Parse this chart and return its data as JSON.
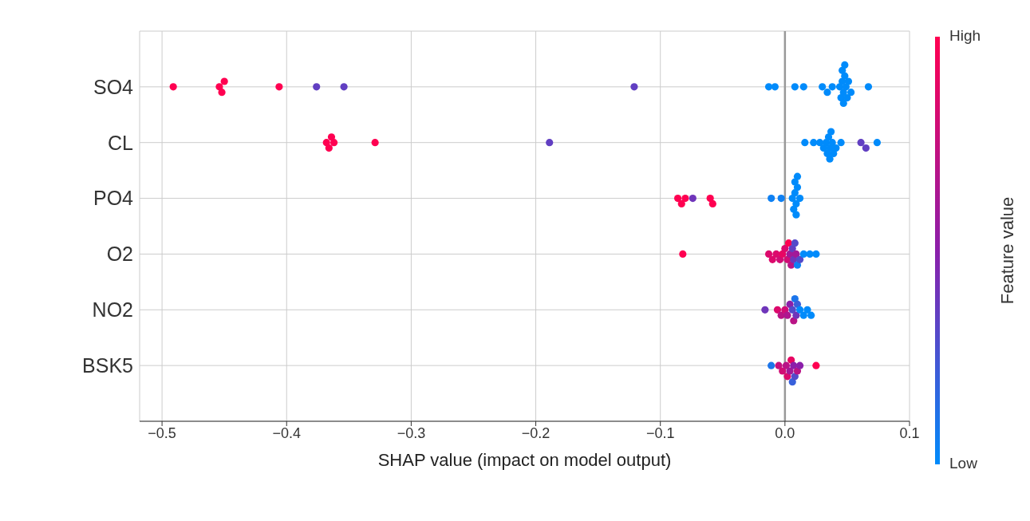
{
  "chart_data": {
    "type": "scatter",
    "orientation": "horizontal",
    "xlabel": "SHAP value (impact on model output)",
    "clabel": "Feature value",
    "categories": [
      "SO4",
      "CL",
      "PO4",
      "O2",
      "NO2",
      "BSK5"
    ],
    "xlim": [
      -0.518,
      0.1
    ],
    "xticks": [
      {
        "value": -0.5,
        "label": "−0.5"
      },
      {
        "value": -0.4,
        "label": "−0.4"
      },
      {
        "value": -0.3,
        "label": "−0.3"
      },
      {
        "value": -0.2,
        "label": "−0.2"
      },
      {
        "value": -0.1,
        "label": "−0.1"
      },
      {
        "value": 0,
        "label": "0.0"
      },
      {
        "value": 0.1,
        "label": "0.1"
      }
    ],
    "clim": [
      0,
      1
    ],
    "cticks": [
      {
        "value": 0,
        "label": "Low"
      },
      {
        "value": 1,
        "label": "High"
      }
    ],
    "grid": true,
    "marker": "circle",
    "ref_lines": [
      {
        "axis": "x",
        "value": 0,
        "color": "#999999"
      }
    ],
    "series": [
      {
        "x": [
          "SO4",
          "SO4",
          "SO4",
          "SO4",
          "SO4",
          "SO4",
          "SO4",
          "SO4",
          "SO4",
          "SO4",
          "SO4",
          "SO4",
          "SO4",
          "SO4",
          "SO4",
          "SO4",
          "SO4",
          "SO4",
          "SO4",
          "SO4",
          "SO4",
          "SO4",
          "SO4",
          "SO4",
          "SO4",
          "SO4",
          "SO4",
          "SO4",
          "CL",
          "CL",
          "CL",
          "CL",
          "CL",
          "CL",
          "CL",
          "CL",
          "CL",
          "CL",
          "CL",
          "CL",
          "CL",
          "CL",
          "CL",
          "CL",
          "CL",
          "CL",
          "CL",
          "CL",
          "CL",
          "CL",
          "CL",
          "PO4",
          "PO4",
          "PO4",
          "PO4",
          "PO4",
          "PO4",
          "PO4",
          "PO4",
          "PO4",
          "PO4",
          "PO4",
          "PO4",
          "PO4",
          "PO4",
          "PO4",
          "PO4",
          "PO4",
          "O2",
          "O2",
          "O2",
          "O2",
          "O2",
          "O2",
          "O2",
          "O2",
          "O2",
          "O2",
          "O2",
          "O2",
          "O2",
          "O2",
          "O2",
          "O2",
          "O2",
          "O2",
          "O2",
          "O2",
          "NO2",
          "NO2",
          "NO2",
          "NO2",
          "NO2",
          "NO2",
          "NO2",
          "NO2",
          "NO2",
          "NO2",
          "NO2",
          "NO2",
          "NO2",
          "NO2",
          "NO2",
          "BSK5",
          "BSK5",
          "BSK5",
          "BSK5",
          "BSK5",
          "BSK5",
          "BSK5",
          "BSK5",
          "BSK5",
          "BSK5",
          "BSK5",
          "BSK5",
          "BSK5"
        ],
        "values": [
          -0.491,
          -0.454,
          -0.452,
          -0.45,
          -0.406,
          -0.376,
          -0.354,
          -0.121,
          -0.013,
          -0.008,
          0.008,
          0.015,
          0.03,
          0.034,
          0.038,
          0.044,
          0.045,
          0.046,
          0.046,
          0.047,
          0.047,
          0.048,
          0.048,
          0.049,
          0.05,
          0.051,
          0.053,
          0.067,
          -0.368,
          -0.366,
          -0.364,
          -0.362,
          -0.329,
          -0.189,
          0.016,
          0.023,
          0.028,
          0.031,
          0.033,
          0.034,
          0.035,
          0.036,
          0.036,
          0.037,
          0.038,
          0.039,
          0.041,
          0.045,
          0.061,
          0.065,
          0.074,
          -0.086,
          -0.083,
          -0.08,
          -0.074,
          -0.06,
          -0.058,
          -0.011,
          -0.003,
          0.006,
          0.007,
          0.008,
          0.008,
          0.009,
          0.009,
          0.01,
          0.01,
          0.012,
          -0.082,
          -0.013,
          -0.01,
          -0.007,
          -0.004,
          -0.002,
          0,
          0.002,
          0.003,
          0.004,
          0.005,
          0.006,
          0.007,
          0.008,
          0.009,
          0.01,
          0.012,
          0.015,
          0.02,
          0.025,
          -0.016,
          -0.006,
          -0.003,
          0,
          0.002,
          0.004,
          0.006,
          0.007,
          0.008,
          0.009,
          0.01,
          0.012,
          0.015,
          0.018,
          0.021,
          -0.011,
          -0.005,
          -0.002,
          0.001,
          0.002,
          0.004,
          0.005,
          0.006,
          0.007,
          0.008,
          0.01,
          0.012,
          0.025
        ],
        "cvalues": [
          1,
          1,
          1,
          1,
          1,
          0.35,
          0.35,
          0.35,
          0,
          0,
          0,
          0,
          0,
          0,
          0,
          0,
          0,
          0,
          0,
          0,
          0,
          0,
          0,
          0,
          0,
          0,
          0,
          0,
          1,
          1,
          1,
          1,
          1,
          0.35,
          0,
          0,
          0,
          0,
          0,
          0,
          0,
          0,
          0,
          0,
          0,
          0,
          0,
          0,
          0.35,
          0.35,
          0,
          1,
          1,
          1,
          0.4,
          1,
          1,
          0.05,
          0.05,
          0,
          0,
          0,
          0,
          0,
          0,
          0,
          0,
          0,
          1,
          0.85,
          0.85,
          0.85,
          0.8,
          0.9,
          0.85,
          0.8,
          1,
          0.6,
          0.7,
          0.35,
          0.4,
          0.3,
          0.6,
          0.05,
          0.3,
          0,
          0,
          0,
          0.4,
          0.85,
          0.7,
          0.8,
          0.65,
          0.5,
          0.3,
          0.7,
          0.1,
          0.4,
          0.2,
          0,
          0,
          0,
          0,
          0.1,
          0.75,
          0.8,
          0.7,
          0.85,
          0.6,
          0.9,
          0.2,
          0.5,
          0.3,
          0.7,
          0.5,
          1
        ]
      }
    ]
  }
}
